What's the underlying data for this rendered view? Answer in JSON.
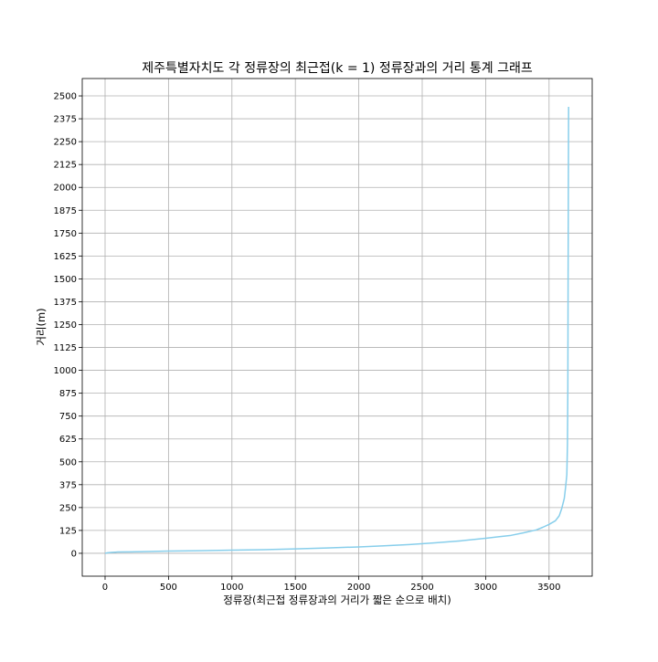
{
  "chart_data": {
    "type": "line",
    "title": "제주특별자치도 각 정류장의 최근접(k = 1) 정류장과의 거리 통계 그래프",
    "xlabel": "정류장(최근접 정류장과의 거리가 짧은 순으로 배치)",
    "ylabel": "거리(m)",
    "xlim": [
      -180,
      3840
    ],
    "ylim": [
      -125,
      2595
    ],
    "xticks": [
      0,
      500,
      1000,
      1500,
      2000,
      2500,
      3000,
      3500
    ],
    "yticks": [
      0,
      125,
      250,
      375,
      500,
      625,
      750,
      875,
      1000,
      1125,
      1250,
      1375,
      1500,
      1625,
      1750,
      1875,
      2000,
      2125,
      2250,
      2375,
      2500
    ],
    "grid": true,
    "series": [
      {
        "color": "#87ceeb",
        "points": [
          [
            0,
            0
          ],
          [
            20,
            3
          ],
          [
            50,
            5
          ],
          [
            100,
            7
          ],
          [
            200,
            8
          ],
          [
            300,
            9
          ],
          [
            500,
            12
          ],
          [
            750,
            14
          ],
          [
            1000,
            17
          ],
          [
            1250,
            20
          ],
          [
            1500,
            24
          ],
          [
            1750,
            29
          ],
          [
            2000,
            35
          ],
          [
            2200,
            41
          ],
          [
            2400,
            48
          ],
          [
            2600,
            57
          ],
          [
            2800,
            68
          ],
          [
            3000,
            82
          ],
          [
            3100,
            90
          ],
          [
            3200,
            98
          ],
          [
            3300,
            112
          ],
          [
            3400,
            128
          ],
          [
            3450,
            142
          ],
          [
            3500,
            158
          ],
          [
            3550,
            178
          ],
          [
            3580,
            205
          ],
          [
            3600,
            245
          ],
          [
            3620,
            300
          ],
          [
            3630,
            360
          ],
          [
            3640,
            430
          ],
          [
            3645,
            600
          ],
          [
            3648,
            900
          ],
          [
            3650,
            1500
          ],
          [
            3652,
            2000
          ],
          [
            3654,
            2440
          ]
        ]
      }
    ]
  }
}
